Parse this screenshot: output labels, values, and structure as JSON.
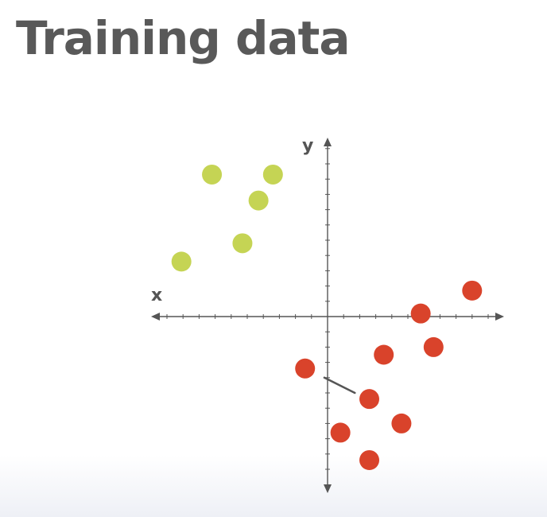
{
  "title": "Training data",
  "chart_data": {
    "type": "scatter",
    "title": "Training data",
    "xlabel": "x",
    "ylabel": "y",
    "xlim": [
      -11,
      11
    ],
    "ylim": [
      -11,
      11
    ],
    "grid": false,
    "legend": "none",
    "series": [
      {
        "color": "#c5d454",
        "points": [
          {
            "x": -9.1,
            "y": 3.6
          },
          {
            "x": -7.2,
            "y": 9.3
          },
          {
            "x": -5.3,
            "y": 4.8
          },
          {
            "x": -4.3,
            "y": 7.6
          },
          {
            "x": -3.4,
            "y": 9.3
          }
        ]
      },
      {
        "color": "#d9432b",
        "points": [
          {
            "x": -1.4,
            "y": -3.4
          },
          {
            "x": 0.8,
            "y": -7.6
          },
          {
            "x": 2.6,
            "y": -5.4
          },
          {
            "x": 2.6,
            "y": -9.4
          },
          {
            "x": 3.5,
            "y": -2.5
          },
          {
            "x": 4.6,
            "y": -7.0
          },
          {
            "x": 5.8,
            "y": 0.2
          },
          {
            "x": 6.6,
            "y": -2.0
          },
          {
            "x": 9.0,
            "y": 1.7
          }
        ]
      }
    ],
    "annotations": [
      {
        "type": "line",
        "from": {
          "x": -0.2,
          "y": -4.0
        },
        "to": {
          "x": 1.7,
          "y": -5.0
        },
        "color": "#555555"
      }
    ]
  }
}
